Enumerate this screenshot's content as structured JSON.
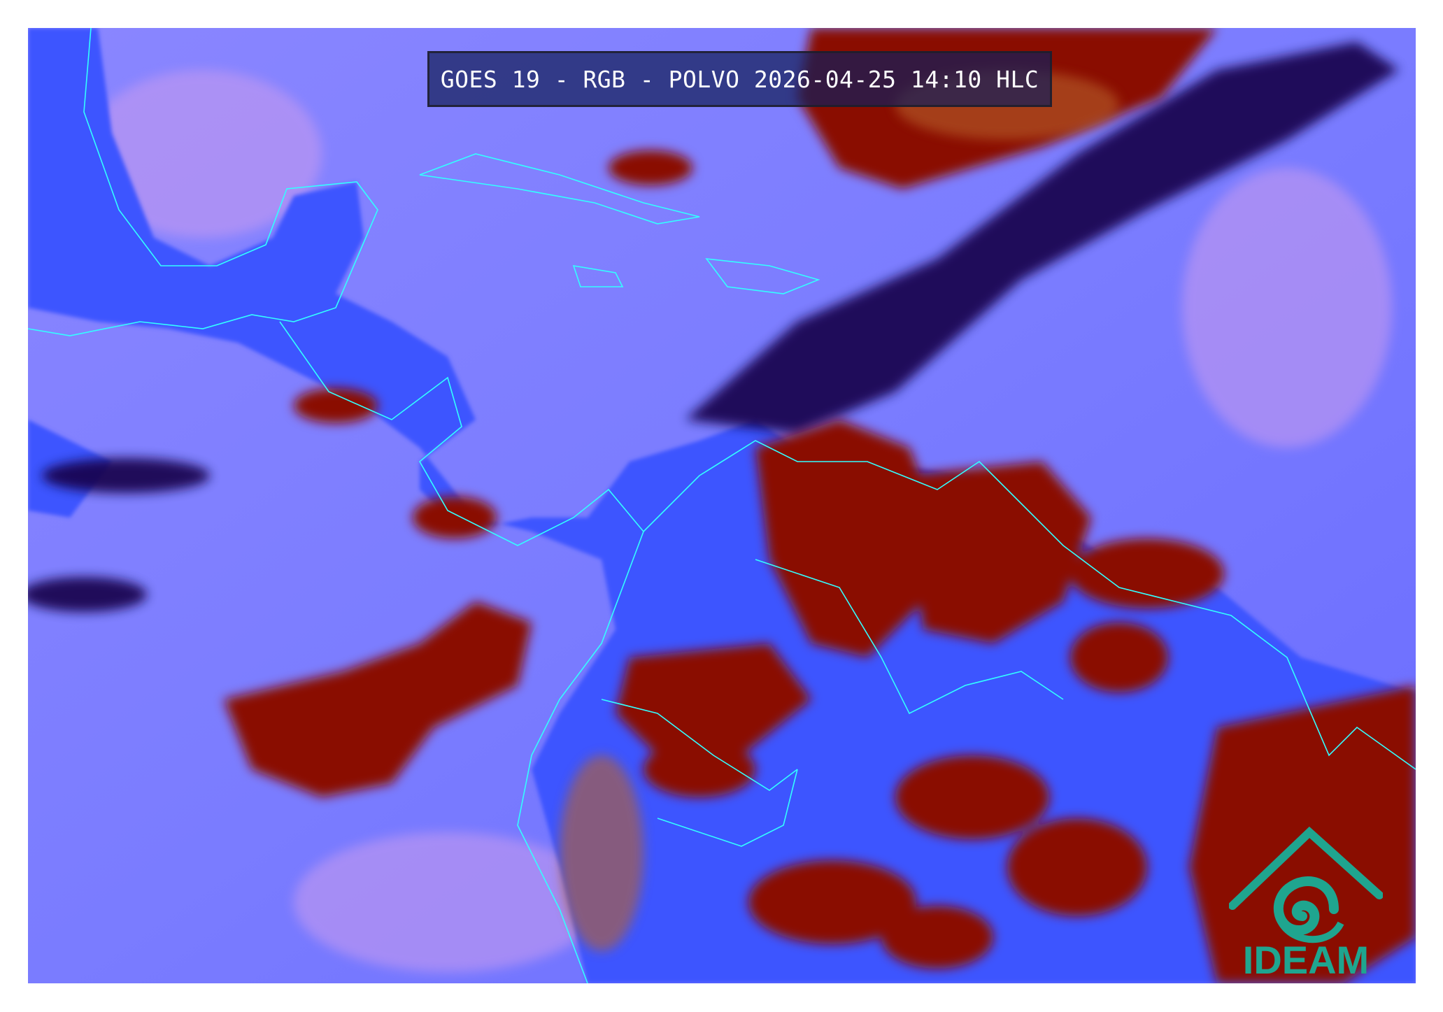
{
  "title": "GOES 19 - RGB - POLVO 2026-04-25 14:10 HLC",
  "logo": {
    "text": "IDEAM",
    "color": "#1fa58f"
  },
  "colors": {
    "background_clear": "#6a6cff",
    "surface_blue": "#3c55ff",
    "cloud_red": "#8a0a00",
    "cloud_dark": "#12004a",
    "dust_pink": "#c58ae8",
    "coastline": "#33ffff"
  }
}
